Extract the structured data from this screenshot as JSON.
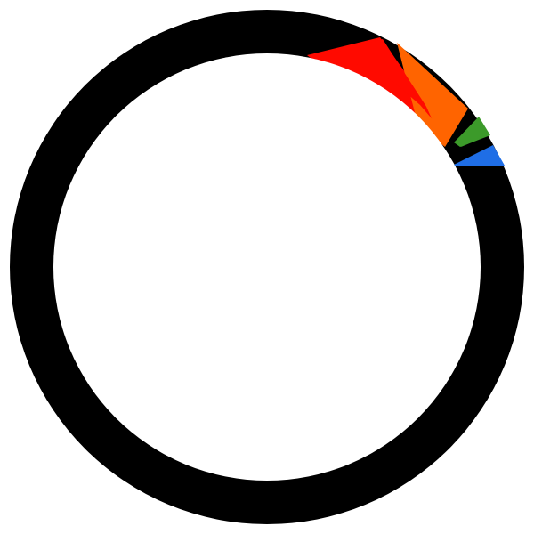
{
  "graphic": {
    "ring_color": "#000000",
    "inner_color": "#ffffff",
    "segments": [
      {
        "color": "#ff0a00"
      },
      {
        "color": "#ff6400"
      },
      {
        "color": "#3c9a2a"
      },
      {
        "color": "#1f6ee6"
      }
    ]
  }
}
